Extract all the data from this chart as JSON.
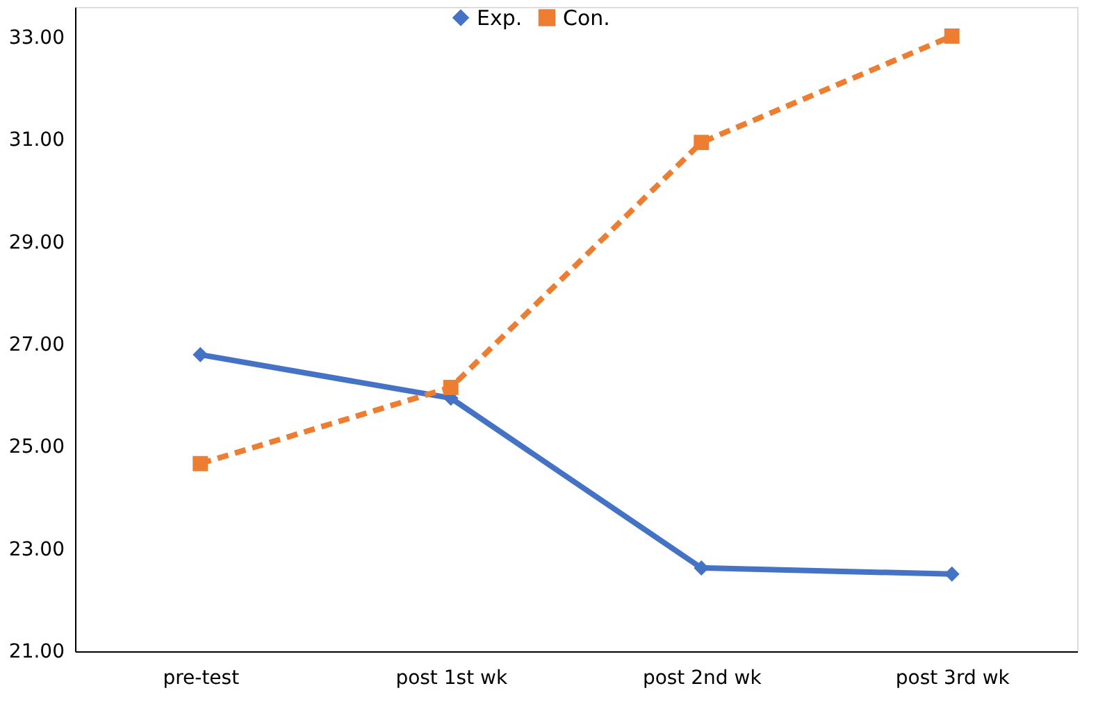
{
  "chart_data": {
    "type": "line",
    "categories": [
      "pre-test",
      "post 1st wk",
      "post 2nd wk",
      "post 3rd wk"
    ],
    "series": [
      {
        "name": "Exp.",
        "color": "#4472c4",
        "values": [
          26.8,
          25.95,
          22.63,
          22.51
        ],
        "marker": "diamond",
        "line_style": "solid"
      },
      {
        "name": "Con.",
        "color": "#ed7d31",
        "values": [
          24.67,
          26.16,
          30.95,
          33.03
        ],
        "marker": "square",
        "line_style": "dashed"
      }
    ],
    "ylim": [
      21,
      33.6
    ],
    "yticks": [
      {
        "value": 21,
        "label": "21.00"
      },
      {
        "value": 23,
        "label": "23.00"
      },
      {
        "value": 25,
        "label": "25.00"
      },
      {
        "value": 27,
        "label": "27.00"
      },
      {
        "value": 29,
        "label": "29.00"
      },
      {
        "value": 31,
        "label": "31.00"
      },
      {
        "value": 33,
        "label": "33.00"
      }
    ],
    "grid": false,
    "legend": "top"
  }
}
